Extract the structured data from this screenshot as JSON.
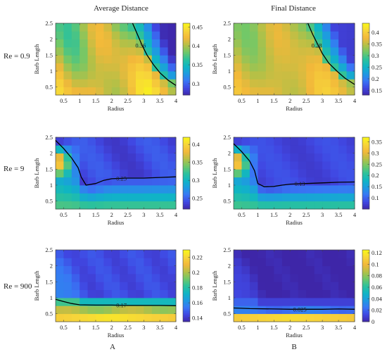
{
  "column_titles": [
    "Average Distance",
    "Final Distance"
  ],
  "row_labels": [
    "Re = 0.9",
    "Re = 9",
    "Re = 900"
  ],
  "column_letters": [
    "A",
    "B"
  ],
  "colormap_stops": [
    "#3e26a8",
    "#4047e2",
    "#3976f5",
    "#1e9be0",
    "#0fb5c4",
    "#2cc19c",
    "#6fc869",
    "#b6c046",
    "#f2b83a",
    "#f7d53a",
    "#f9f718"
  ],
  "chart_data": [
    {
      "type": "heatmap",
      "title": "Average Distance",
      "row_label": "Re = 0.9",
      "xlabel": "Radius",
      "ylabel": "Barb Length",
      "x_ticks": [
        "0.5",
        "1",
        "1.5",
        "2",
        "2.5",
        "3",
        "3.5",
        "4"
      ],
      "y_ticks": [
        "0.5",
        "1",
        "1.5",
        "2",
        "2.5"
      ],
      "xlim": [
        0.25,
        4.0
      ],
      "ylim": [
        0.25,
        2.5
      ],
      "colorbar": {
        "min": 0.27,
        "max": 0.46,
        "ticks": [
          "0.3",
          "0.35",
          "0.4",
          "0.45"
        ]
      },
      "field": {
        "base": 0.41,
        "kind": "low_high_radius",
        "contour": [
          [
            2.65,
            2.5
          ],
          [
            2.8,
            2.15
          ],
          [
            2.95,
            1.8
          ],
          [
            3.1,
            1.5
          ],
          [
            3.3,
            1.2
          ],
          [
            3.5,
            0.95
          ],
          [
            3.75,
            0.72
          ],
          [
            4.0,
            0.55
          ]
        ],
        "low": 0.28,
        "grad": 0.22
      },
      "contour_label": "0.36"
    },
    {
      "type": "heatmap",
      "title": "Final Distance",
      "row_label": "Re = 0.9",
      "xlabel": "Radius",
      "ylabel": "Barb Length",
      "x_ticks": [
        "0.5",
        "1",
        "1.5",
        "2",
        "2.5",
        "3",
        "3.5",
        "4"
      ],
      "y_ticks": [
        "0.5",
        "1",
        "1.5",
        "2",
        "2.5"
      ],
      "xlim": [
        0.25,
        4.0
      ],
      "ylim": [
        0.25,
        2.5
      ],
      "colorbar": {
        "min": 0.13,
        "max": 0.44,
        "ticks": [
          "0.15",
          "0.2",
          "0.25",
          "0.3",
          "0.35",
          "0.4"
        ]
      },
      "field": {
        "base": 0.36,
        "kind": "low_high_radius",
        "contour": [
          [
            2.55,
            2.5
          ],
          [
            2.7,
            2.15
          ],
          [
            2.85,
            1.85
          ],
          [
            3.0,
            1.55
          ],
          [
            3.2,
            1.25
          ],
          [
            3.45,
            1.0
          ],
          [
            3.7,
            0.78
          ],
          [
            4.0,
            0.58
          ]
        ],
        "low": 0.16,
        "grad": 0.32
      },
      "contour_label": "0.28"
    },
    {
      "type": "heatmap",
      "title": "Average Distance",
      "row_label": "Re = 9",
      "xlabel": "Radius",
      "ylabel": "Barb Length",
      "x_ticks": [
        "0.5",
        "1",
        "1.5",
        "2",
        "2.5",
        "3",
        "3.5",
        "4"
      ],
      "y_ticks": [
        "0.5",
        "1",
        "1.5",
        "2",
        "2.5"
      ],
      "xlim": [
        0.25,
        4.0
      ],
      "ylim": [
        0.25,
        2.5
      ],
      "colorbar": {
        "min": 0.22,
        "max": 0.42,
        "ticks": [
          "0.25",
          "0.3",
          "0.35",
          "0.4"
        ]
      },
      "field": {
        "kind": "mid",
        "bottom": 0.33,
        "top": 0.24,
        "corner": 0.41,
        "contour": [
          [
            0.25,
            2.4
          ],
          [
            0.5,
            2.15
          ],
          [
            0.75,
            1.85
          ],
          [
            0.95,
            1.55
          ],
          [
            1.05,
            1.25
          ],
          [
            1.2,
            1.0
          ],
          [
            1.5,
            1.05
          ],
          [
            1.75,
            1.15
          ],
          [
            2.0,
            1.2
          ],
          [
            2.5,
            1.22
          ],
          [
            3.0,
            1.22
          ],
          [
            3.5,
            1.24
          ],
          [
            4.0,
            1.26
          ]
        ]
      },
      "contour_label": "0.25"
    },
    {
      "type": "heatmap",
      "title": "Final Distance",
      "row_label": "Re = 9",
      "xlabel": "Radius",
      "ylabel": "Barb Length",
      "x_ticks": [
        "0.5",
        "1",
        "1.5",
        "2",
        "2.5",
        "3",
        "3.5",
        "4"
      ],
      "y_ticks": [
        "0.5",
        "1",
        "1.5",
        "2",
        "2.5"
      ],
      "xlim": [
        0.25,
        4.0
      ],
      "ylim": [
        0.25,
        2.5
      ],
      "colorbar": {
        "min": 0.05,
        "max": 0.37,
        "ticks": [
          "0.1",
          "0.15",
          "0.2",
          "0.25",
          "0.3",
          "0.35"
        ]
      },
      "field": {
        "kind": "mid",
        "bottom": 0.22,
        "top": 0.08,
        "corner": 0.36,
        "contour": [
          [
            0.25,
            2.3
          ],
          [
            0.5,
            2.05
          ],
          [
            0.75,
            1.75
          ],
          [
            0.9,
            1.45
          ],
          [
            1.0,
            1.05
          ],
          [
            1.2,
            0.95
          ],
          [
            1.5,
            0.96
          ],
          [
            1.75,
            1.0
          ],
          [
            2.0,
            1.03
          ],
          [
            2.5,
            1.05
          ],
          [
            3.0,
            1.07
          ],
          [
            3.5,
            1.09
          ],
          [
            4.0,
            1.1
          ]
        ]
      },
      "contour_label": "0.13"
    },
    {
      "type": "heatmap",
      "title": "Average Distance",
      "row_label": "Re = 900",
      "xlabel": "Radius",
      "ylabel": "Barb Length",
      "x_ticks": [
        "0.5",
        "1",
        "1.5",
        "2",
        "2.5",
        "3",
        "3.5",
        "4"
      ],
      "y_ticks": [
        "0.5",
        "1",
        "1.5",
        "2",
        "2.5"
      ],
      "xlim": [
        0.25,
        4.0
      ],
      "ylim": [
        0.25,
        2.5
      ],
      "colorbar": {
        "min": 0.135,
        "max": 0.23,
        "ticks": [
          "0.14",
          "0.16",
          "0.18",
          "0.2",
          "0.22"
        ]
      },
      "field": {
        "kind": "bottom_band",
        "bottom": 0.225,
        "row2": 0.2,
        "row3": 0.175,
        "top": 0.145,
        "contour": [
          [
            0.25,
            0.95
          ],
          [
            0.5,
            0.88
          ],
          [
            0.75,
            0.82
          ],
          [
            1.0,
            0.78
          ],
          [
            1.5,
            0.77
          ],
          [
            2.0,
            0.77
          ],
          [
            2.5,
            0.76
          ],
          [
            3.0,
            0.76
          ],
          [
            3.5,
            0.76
          ],
          [
            4.0,
            0.75
          ]
        ]
      },
      "contour_label": "0.17"
    },
    {
      "type": "heatmap",
      "title": "Final Distance",
      "row_label": "Re = 900",
      "xlabel": "Radius",
      "ylabel": "Barb Length",
      "x_ticks": [
        "0.5",
        "1",
        "1.5",
        "2",
        "2.5",
        "3",
        "3.5",
        "4"
      ],
      "y_ticks": [
        "0.5",
        "1",
        "1.5",
        "2",
        "2.5"
      ],
      "xlim": [
        0.25,
        4.0
      ],
      "ylim": [
        0.25,
        2.5
      ],
      "colorbar": {
        "min": 0.0,
        "max": 0.125,
        "ticks": [
          "0",
          "0.02",
          "0.04",
          "0.06",
          "0.08",
          "0.1",
          "0.12"
        ]
      },
      "field": {
        "kind": "bottom_band",
        "bottom": 0.115,
        "row2": 0.025,
        "row3": 0.01,
        "top": 0.0,
        "contour": [
          [
            0.25,
            0.68
          ],
          [
            0.75,
            0.66
          ],
          [
            1.5,
            0.65
          ],
          [
            2.0,
            0.64
          ],
          [
            2.5,
            0.64
          ],
          [
            3.0,
            0.64
          ],
          [
            3.5,
            0.65
          ],
          [
            4.0,
            0.64
          ]
        ]
      },
      "contour_label": "0.025"
    }
  ]
}
